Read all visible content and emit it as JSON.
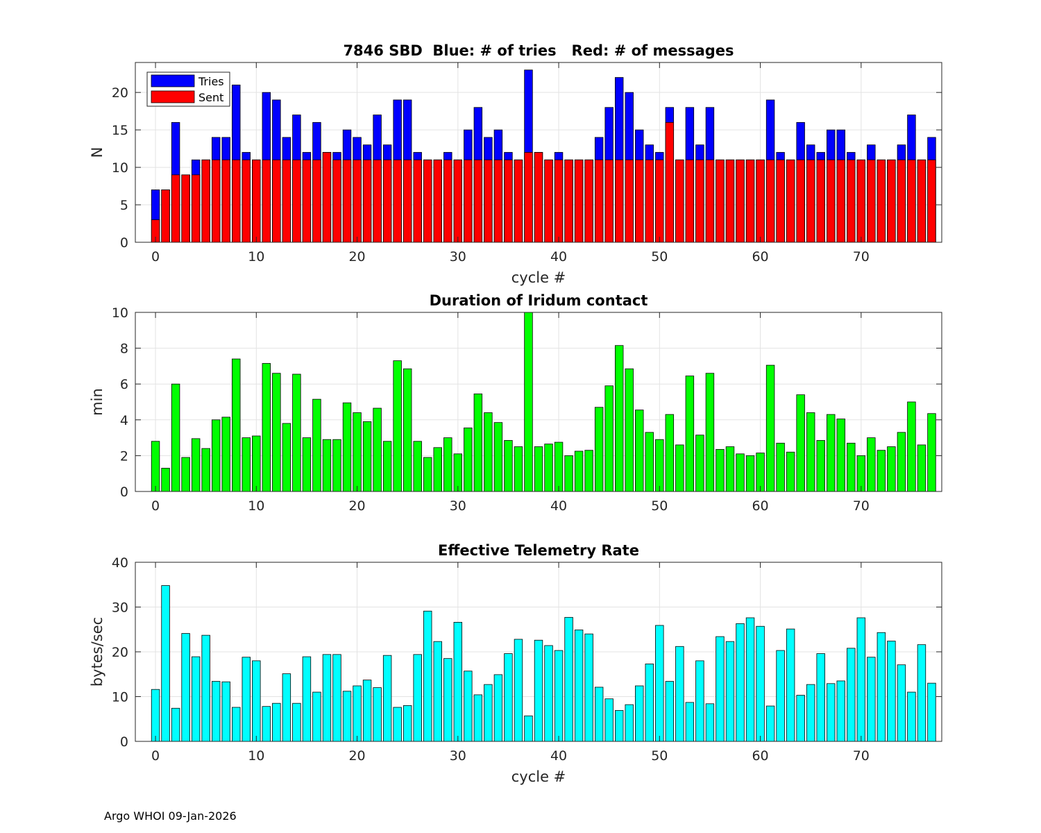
{
  "footer": "Argo WHOI 09-Jan-2026",
  "chart_data": [
    {
      "type": "bar",
      "title": "7846 SBD  Blue: # of tries   Red: # of messages",
      "xlabel": "cycle #",
      "ylabel": "N",
      "xlim": [
        -2,
        78
      ],
      "ylim": [
        0,
        24
      ],
      "xticks": [
        0,
        10,
        20,
        30,
        40,
        50,
        60,
        70
      ],
      "yticks": [
        0,
        5,
        10,
        15,
        20
      ],
      "grid": true,
      "legend": "top-left",
      "x": [
        0,
        1,
        2,
        3,
        4,
        5,
        6,
        7,
        8,
        9,
        10,
        11,
        12,
        13,
        14,
        15,
        16,
        17,
        18,
        19,
        20,
        21,
        22,
        23,
        24,
        25,
        26,
        27,
        28,
        29,
        30,
        31,
        32,
        33,
        34,
        35,
        36,
        37,
        38,
        39,
        40,
        41,
        42,
        43,
        44,
        45,
        46,
        47,
        48,
        49,
        50,
        51,
        52,
        53,
        54,
        55,
        56,
        57,
        58,
        59,
        60,
        61,
        62,
        63,
        64,
        65,
        66,
        67,
        68,
        69,
        70,
        71,
        72,
        73,
        74,
        75,
        76,
        77
      ],
      "series": [
        {
          "name": "Tries",
          "color": "#0000ff",
          "values": [
            7,
            7,
            16,
            9,
            11,
            11,
            14,
            14,
            21,
            12,
            11,
            20,
            19,
            14,
            17,
            12,
            16,
            12,
            12,
            15,
            14,
            13,
            17,
            13,
            19,
            19,
            12,
            11,
            11,
            12,
            11,
            15,
            18,
            14,
            15,
            12,
            11,
            23,
            12,
            11,
            12,
            11,
            11,
            11,
            14,
            18,
            22,
            20,
            15,
            13,
            12,
            18,
            11,
            18,
            13,
            18,
            11,
            11,
            11,
            11,
            11,
            19,
            12,
            11,
            16,
            13,
            12,
            15,
            15,
            12,
            11,
            13,
            11,
            11,
            13,
            17,
            11,
            14
          ]
        },
        {
          "name": "Sent",
          "color": "#ff0000",
          "values": [
            3,
            7,
            9,
            9,
            9,
            11,
            11,
            11,
            11,
            11,
            11,
            11,
            11,
            11,
            11,
            11,
            11,
            12,
            11,
            11,
            11,
            11,
            11,
            11,
            11,
            11,
            11,
            11,
            11,
            11,
            11,
            11,
            11,
            11,
            11,
            11,
            11,
            12,
            12,
            11,
            11,
            11,
            11,
            11,
            11,
            11,
            11,
            11,
            11,
            11,
            11,
            16,
            11,
            11,
            11,
            11,
            11,
            11,
            11,
            11,
            11,
            11,
            11,
            11,
            11,
            11,
            11,
            11,
            11,
            11,
            11,
            11,
            11,
            11,
            11,
            11,
            11,
            11
          ]
        }
      ]
    },
    {
      "type": "bar",
      "title": "Duration of Iridum contact",
      "xlabel": "",
      "ylabel": "min",
      "xlim": [
        -2,
        78
      ],
      "ylim": [
        0,
        10
      ],
      "xticks": [
        0,
        10,
        20,
        30,
        40,
        50,
        60,
        70
      ],
      "yticks": [
        0,
        2,
        4,
        6,
        8,
        10
      ],
      "grid": true,
      "x": [
        0,
        1,
        2,
        3,
        4,
        5,
        6,
        7,
        8,
        9,
        10,
        11,
        12,
        13,
        14,
        15,
        16,
        17,
        18,
        19,
        20,
        21,
        22,
        23,
        24,
        25,
        26,
        27,
        28,
        29,
        30,
        31,
        32,
        33,
        34,
        35,
        36,
        37,
        38,
        39,
        40,
        41,
        42,
        43,
        44,
        45,
        46,
        47,
        48,
        49,
        50,
        51,
        52,
        53,
        54,
        55,
        56,
        57,
        58,
        59,
        60,
        61,
        62,
        63,
        64,
        65,
        66,
        67,
        68,
        69,
        70,
        71,
        72,
        73,
        74,
        75,
        76,
        77
      ],
      "series": [
        {
          "name": "Duration",
          "color": "#00ff00",
          "values": [
            2.8,
            1.3,
            6.0,
            1.9,
            2.95,
            2.4,
            4.0,
            4.15,
            7.4,
            3.0,
            3.1,
            7.15,
            6.6,
            3.8,
            6.55,
            3.0,
            5.15,
            2.9,
            2.9,
            4.95,
            4.4,
            3.9,
            4.65,
            2.8,
            7.3,
            6.85,
            2.8,
            1.9,
            2.45,
            3.0,
            2.1,
            3.55,
            5.45,
            4.4,
            3.85,
            2.85,
            2.5,
            10.0,
            2.5,
            2.65,
            2.75,
            2.0,
            2.25,
            2.3,
            4.7,
            5.9,
            8.15,
            6.85,
            4.55,
            3.3,
            2.9,
            4.3,
            2.6,
            6.45,
            3.15,
            6.6,
            2.35,
            2.5,
            2.1,
            2.0,
            2.15,
            7.05,
            2.7,
            2.2,
            5.4,
            4.4,
            2.85,
            4.3,
            4.05,
            2.7,
            2.0,
            3.0,
            2.3,
            2.5,
            3.3,
            5.0,
            2.6,
            4.35
          ]
        }
      ]
    },
    {
      "type": "bar",
      "title": "Effective Telemetry Rate",
      "xlabel": "cycle #",
      "ylabel": "bytes/sec",
      "xlim": [
        -2,
        78
      ],
      "ylim": [
        0,
        40
      ],
      "xticks": [
        0,
        10,
        20,
        30,
        40,
        50,
        60,
        70
      ],
      "yticks": [
        0,
        10,
        20,
        30,
        40
      ],
      "grid": true,
      "x": [
        0,
        1,
        2,
        3,
        4,
        5,
        6,
        7,
        8,
        9,
        10,
        11,
        12,
        13,
        14,
        15,
        16,
        17,
        18,
        19,
        20,
        21,
        22,
        23,
        24,
        25,
        26,
        27,
        28,
        29,
        30,
        31,
        32,
        33,
        34,
        35,
        36,
        37,
        38,
        39,
        40,
        41,
        42,
        43,
        44,
        45,
        46,
        47,
        48,
        49,
        50,
        51,
        52,
        53,
        54,
        55,
        56,
        57,
        58,
        59,
        60,
        61,
        62,
        63,
        64,
        65,
        66,
        67,
        68,
        69,
        70,
        71,
        72,
        73,
        74,
        75,
        76,
        77
      ],
      "series": [
        {
          "name": "Rate",
          "color": "#00ffff",
          "values": [
            11.6,
            34.8,
            7.4,
            24.1,
            18.9,
            23.7,
            13.4,
            13.3,
            7.6,
            18.8,
            18.0,
            7.8,
            8.5,
            15.1,
            8.5,
            18.9,
            11.0,
            19.4,
            19.4,
            11.2,
            12.4,
            13.7,
            12.0,
            19.2,
            7.6,
            8.0,
            19.4,
            29.1,
            22.3,
            18.5,
            26.6,
            15.7,
            10.4,
            12.7,
            14.9,
            19.6,
            22.8,
            5.7,
            22.6,
            21.4,
            20.3,
            27.7,
            24.9,
            24.0,
            12.1,
            9.5,
            6.9,
            8.2,
            12.4,
            17.3,
            25.9,
            13.4,
            21.2,
            8.7,
            18.0,
            8.4,
            23.4,
            22.3,
            26.3,
            27.6,
            25.7,
            7.9,
            20.3,
            25.1,
            10.3,
            12.7,
            19.6,
            12.9,
            13.5,
            20.8,
            27.6,
            18.8,
            24.3,
            22.4,
            17.1,
            11.0,
            21.6,
            13.0
          ]
        }
      ]
    }
  ]
}
